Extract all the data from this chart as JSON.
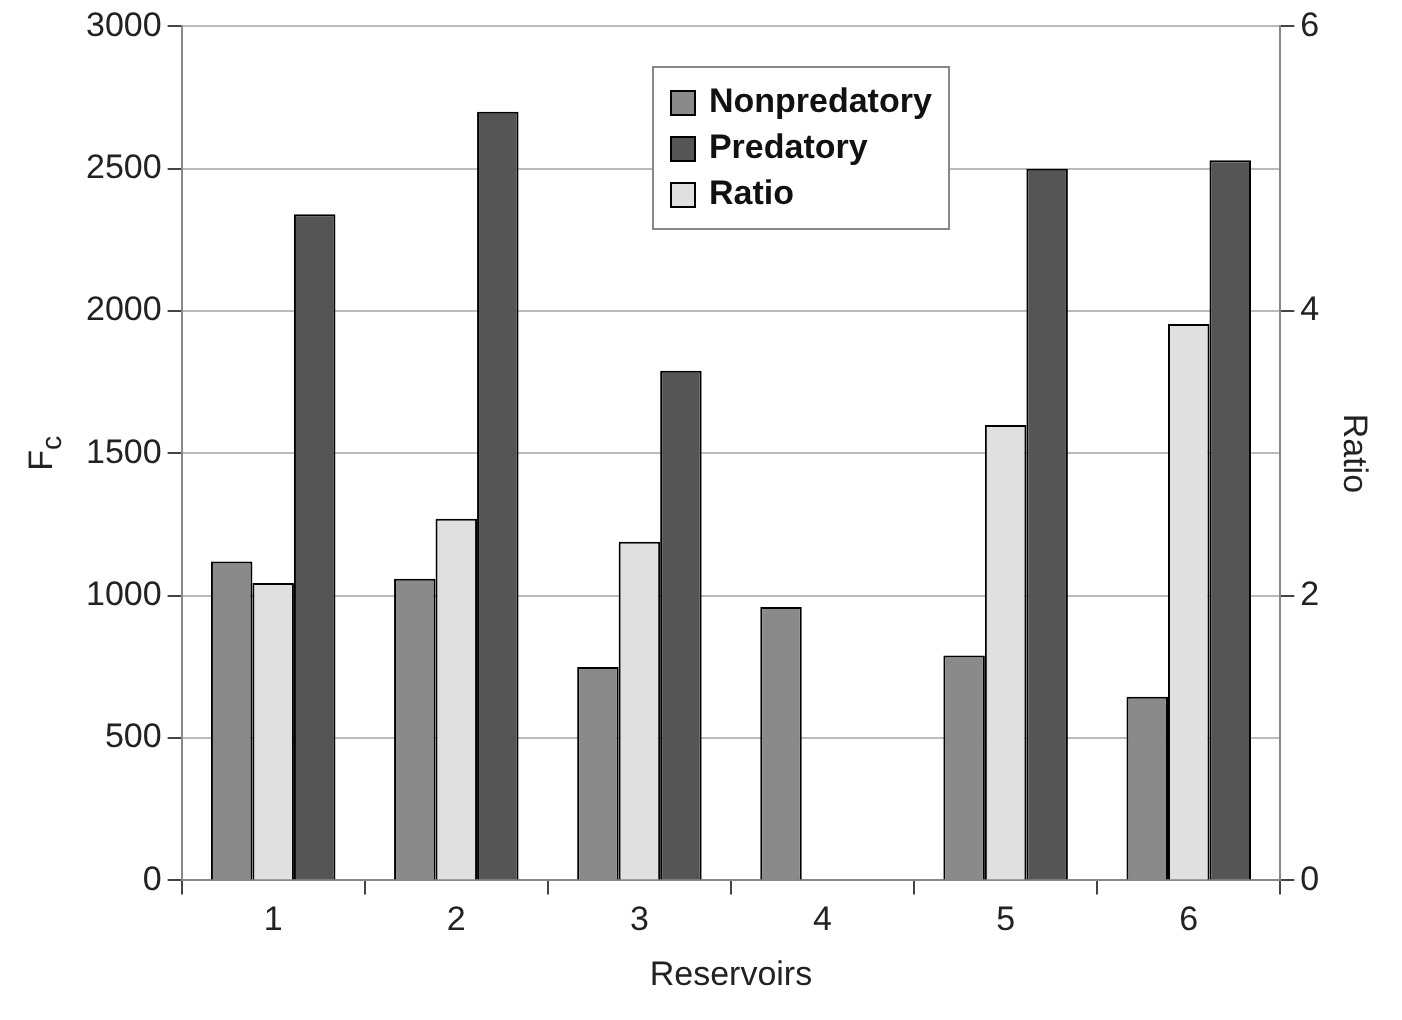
{
  "chart_data": {
    "type": "bar",
    "xlabel": "Reservoirs",
    "ylabel": "F$_{c}$",
    "y2label": "Ratio",
    "categories": [
      "1",
      "2",
      "3",
      "4",
      "5",
      "6"
    ],
    "series": [
      {
        "name": "Nonpredatory",
        "color": "#8a8a8a",
        "values": [
          1120,
          1060,
          750,
          960,
          790,
          645
        ]
      },
      {
        "name": "Predatory",
        "color": "#555555",
        "values": [
          2340,
          2700,
          1790,
          null,
          2500,
          2530
        ]
      },
      {
        "name": "Ratio",
        "color": "#e0e0e0",
        "axis": "y2",
        "values": [
          2.09,
          2.54,
          2.38,
          null,
          3.2,
          3.91
        ]
      }
    ],
    "ylim": [
      0,
      3000
    ],
    "yticks": [
      0,
      500,
      1000,
      1500,
      2000,
      2500,
      3000
    ],
    "y2lim": [
      0,
      6
    ],
    "y2ticks": [
      0,
      2,
      4,
      6
    ],
    "grid": "y",
    "legend": "top"
  }
}
